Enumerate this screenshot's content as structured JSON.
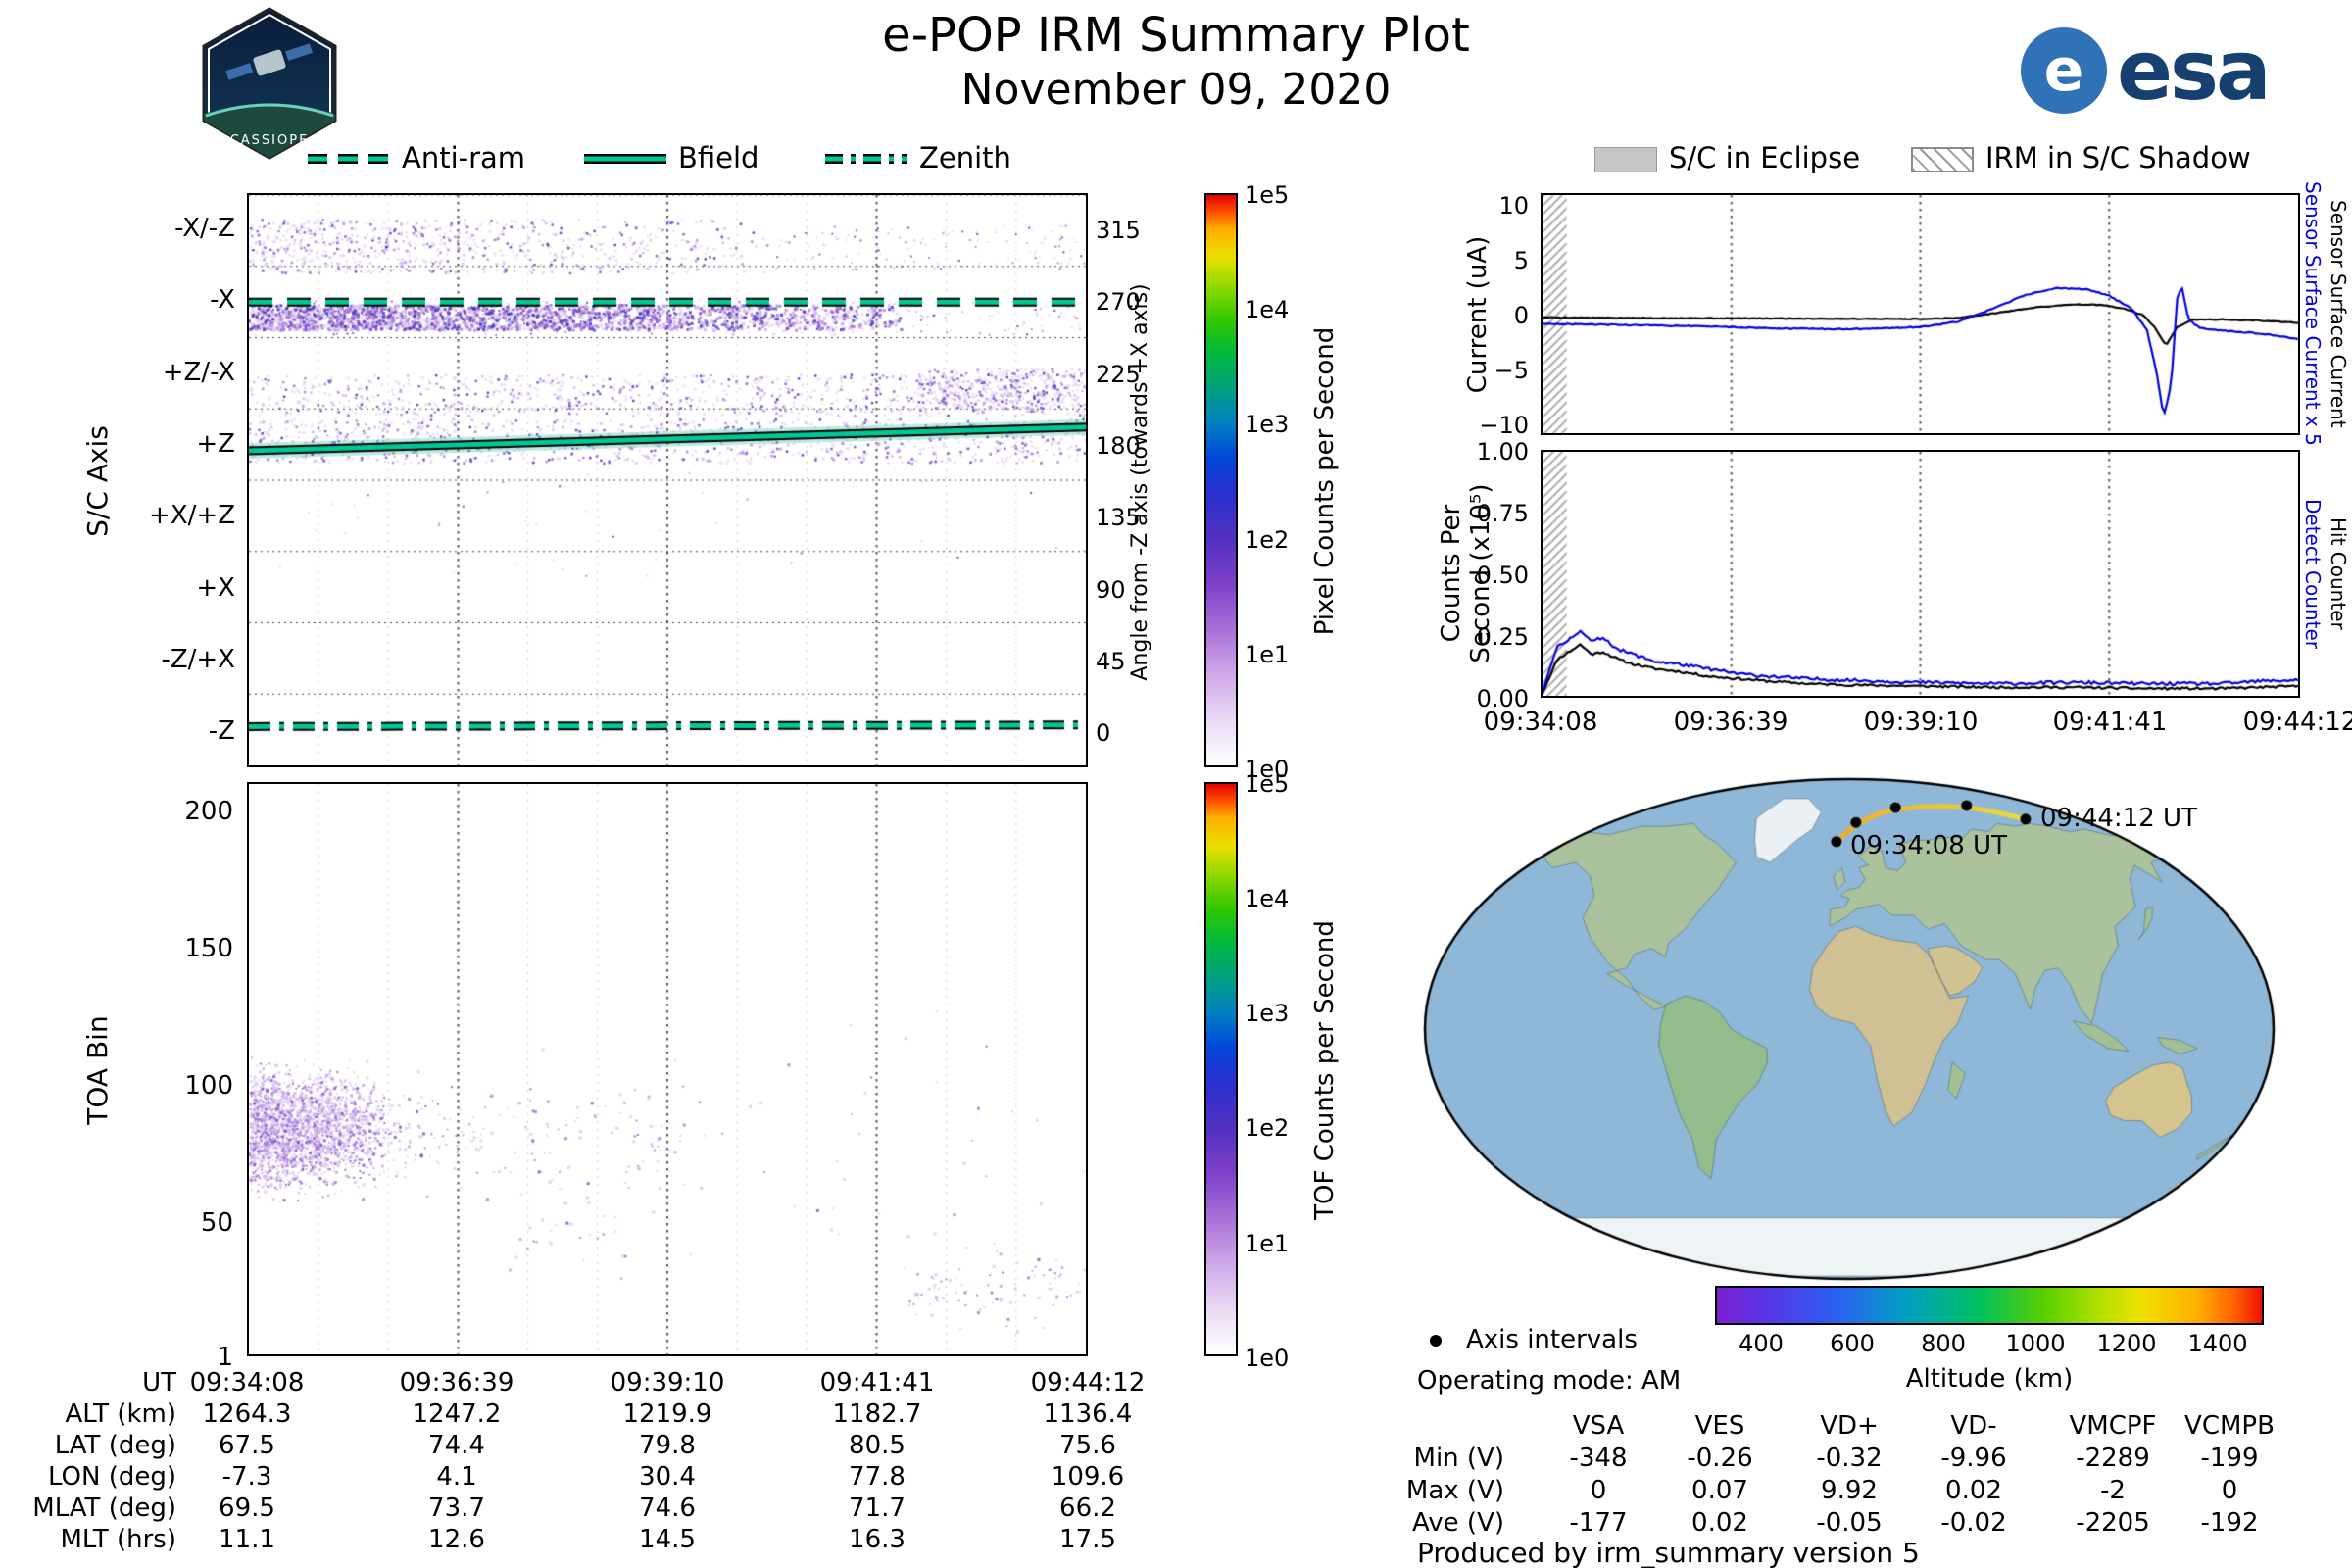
{
  "header": {
    "title": "e-POP IRM Summary Plot",
    "date": "November 09, 2020",
    "esa_logo_text": "esa",
    "esa_logo_e": "e",
    "mission_patch_text": "CASSIOPE"
  },
  "left_legend": {
    "items": [
      {
        "label": "Anti-ram"
      },
      {
        "label": "Bfield"
      },
      {
        "label": "Zenith"
      }
    ],
    "line_color": "#00c896"
  },
  "right_legend": {
    "eclipse": "S/C in Eclipse",
    "shadow": "IRM in S/C Shadow"
  },
  "spectrogram": {
    "ylabel": "S/C Axis",
    "band_labels": [
      "-X/-Z",
      "-X",
      "+Z/-X",
      "+Z",
      "+X/+Z",
      "+X",
      "-Z/+X",
      "-Z"
    ],
    "angle_label": "Angle from -Z axis (towards +X axis)",
    "angle_ticks": [
      "315",
      "270",
      "225",
      "180",
      "135",
      "90",
      "45",
      "0"
    ],
    "colorbar_label": "Pixel Counts per Second",
    "colorbar_ticks": [
      "1e5",
      "1e4",
      "1e3",
      "1e2",
      "1e1",
      "1e0"
    ]
  },
  "toa": {
    "ylabel": "TOA Bin",
    "y_ticks": [
      "200",
      "150",
      "100",
      "50",
      "1"
    ],
    "colorbar_label": "TOF Counts per Second",
    "colorbar_ticks": [
      "1e5",
      "1e4",
      "1e3",
      "1e2",
      "1e1",
      "1e0"
    ]
  },
  "ephemeris": {
    "rows": [
      {
        "label": "UT",
        "values": [
          "09:34:08",
          "09:36:39",
          "09:39:10",
          "09:41:41",
          "09:44:12"
        ]
      },
      {
        "label": "ALT (km)",
        "values": [
          "1264.3",
          "1247.2",
          "1219.9",
          "1182.7",
          "1136.4"
        ]
      },
      {
        "label": "LAT (deg)",
        "values": [
          "67.5",
          "74.4",
          "79.8",
          "80.5",
          "75.6"
        ]
      },
      {
        "label": "LON (deg)",
        "values": [
          "-7.3",
          "4.1",
          "30.4",
          "77.8",
          "109.6"
        ]
      },
      {
        "label": "MLAT (deg)",
        "values": [
          "69.5",
          "73.7",
          "74.6",
          "71.7",
          "66.2"
        ]
      },
      {
        "label": "MLT (hrs)",
        "values": [
          "11.1",
          "12.6",
          "14.5",
          "16.3",
          "17.5"
        ]
      }
    ]
  },
  "current_chart": {
    "ylabel": "Current (uA)",
    "y_ticks": [
      "10",
      "5",
      "0",
      "−5",
      "−10"
    ],
    "label_blue": "Sensor Surface Current x 5",
    "label_black": "Sensor Surface Current"
  },
  "counts_chart": {
    "ylabel_line1": "Counts Per",
    "ylabel_line2": "Second (x10⁵)",
    "y_ticks": [
      "1.00",
      "0.75",
      "0.50",
      "0.25",
      "0.00"
    ],
    "label_blue": "Detect Counter",
    "label_black": "Hit Counter",
    "x_ticks": [
      "09:34:08",
      "09:36:39",
      "09:39:10",
      "09:41:41",
      "09:44:12"
    ]
  },
  "map": {
    "start_label": "09:34:08 UT",
    "end_label": "09:44:12 UT",
    "axis_intervals": "Axis intervals",
    "operating_mode": "Operating mode: AM",
    "altitude_label": "Altitude (km)",
    "altitude_ticks": [
      "400",
      "600",
      "800",
      "1000",
      "1200",
      "1400"
    ]
  },
  "voltage_table": {
    "headers": [
      "VSA",
      "VES",
      "VD+",
      "VD-",
      "VMCPF",
      "VCMPB"
    ],
    "rows": [
      {
        "label": "Min (V)",
        "values": [
          "-348",
          "-0.26",
          "-0.32",
          "-9.96",
          "-2289",
          "-199"
        ]
      },
      {
        "label": "Max (V)",
        "values": [
          "0",
          "0.07",
          "9.92",
          "0.02",
          "-2",
          "0"
        ]
      },
      {
        "label": "Ave (V)",
        "values": [
          "-177",
          "0.02",
          "-0.05",
          "-0.02",
          "-2205",
          "-192"
        ]
      }
    ]
  },
  "footer": "Produced by irm_summary version 5",
  "chart_data": [
    {
      "id": "sc_axis",
      "type": "heatmap",
      "ylabel": "S/C Axis",
      "y2label": "Angle from -Z axis (towards +X axis)",
      "x_ticks": [
        "09:34:08",
        "09:36:39",
        "09:39:10",
        "09:41:41",
        "09:44:12"
      ],
      "band_labels": [
        "-X/-Z",
        "-X",
        "+Z/-X",
        "+Z",
        "+X/+Z",
        "+X",
        "-Z/+X",
        "-Z"
      ],
      "angle_ticks": [
        315,
        270,
        225,
        180,
        135,
        90,
        45,
        0
      ],
      "angle_range": [
        -22.5,
        337.5
      ],
      "colorbar": {
        "label": "Pixel Counts per Second",
        "scale": "log",
        "ticks": [
          "1e0",
          "1e1",
          "1e2",
          "1e3",
          "1e4",
          "1e5"
        ]
      },
      "line_color": "#00c896",
      "lines": {
        "anti_ram": {
          "style": "dashed",
          "angle": [
            270,
            270
          ]
        },
        "bfield": {
          "style": "solid",
          "angle_start": 176,
          "angle_end": 191
        },
        "zenith": {
          "style": "dashdot",
          "angle": [
            2,
            3
          ]
        }
      },
      "speckle_colors": [
        "#e6d6f4",
        "#cdb0ea",
        "#aa7fd9",
        "#7e4fc9",
        "#4a38be"
      ],
      "speckle_regions": [
        {
          "angle": [
            288,
            322
          ],
          "t": [
            0,
            0.62
          ],
          "count": 1200,
          "fade": true,
          "size": 2.5
        },
        {
          "angle": [
            290,
            318
          ],
          "t": [
            0.62,
            1
          ],
          "count": 140,
          "size": 2
        },
        {
          "angle": [
            252,
            268
          ],
          "t": [
            0,
            0.78
          ],
          "count": 3400,
          "fade": true,
          "dense": true,
          "size": 3
        },
        {
          "angle": [
            249,
            271
          ],
          "t": [
            0,
            1
          ],
          "count": 300,
          "size": 2
        },
        {
          "angle": [
            198,
            224
          ],
          "t": [
            0,
            1
          ],
          "count": 800,
          "size": 2.5
        },
        {
          "angle": [
            202,
            228
          ],
          "t": [
            0.8,
            1
          ],
          "count": 380,
          "size": 2.5
        },
        {
          "angle": [
            168,
            196
          ],
          "t": [
            0,
            1
          ],
          "count": 950,
          "size": 2.5
        },
        {
          "angle": [
            95,
            165
          ],
          "t": [
            0,
            1
          ],
          "count": 45,
          "size": 2
        }
      ]
    },
    {
      "id": "toa",
      "type": "scatter",
      "ylabel": "TOA Bin",
      "y_ticks": [
        1,
        50,
        100,
        150,
        200
      ],
      "y_range": [
        1,
        212
      ],
      "colorbar": {
        "label": "TOF Counts per Second",
        "scale": "log",
        "ticks": [
          "1e0",
          "1e1",
          "1e2",
          "1e3",
          "1e4",
          "1e5"
        ]
      },
      "colors": [
        "#dcc6f0",
        "#c19de4",
        "#a274d6",
        "#7e4cc4"
      ],
      "clusters": [
        {
          "t": [
            0,
            0.16
          ],
          "center": 85,
          "spread": 10,
          "count": 3200,
          "decay": true
        },
        {
          "t": [
            0.05,
            0.3
          ],
          "center": 82,
          "spread": 9,
          "count": 520,
          "decay": true
        },
        {
          "t": [
            0.3,
            0.52
          ],
          "center": 80,
          "spread": 12,
          "count": 90
        },
        {
          "t": [
            0.5,
            1
          ],
          "center": 85,
          "spread": 28,
          "count": 40
        },
        {
          "t": [
            0.78,
            1
          ],
          "center": 25,
          "spread": 7,
          "count": 90
        },
        {
          "t": [
            0.3,
            0.45
          ],
          "center": 45,
          "spread": 8,
          "count": 25
        }
      ]
    },
    {
      "id": "current",
      "type": "line",
      "ylabel": "Current (uA)",
      "y_range": [
        -11,
        11
      ],
      "y_ticks": [
        10,
        5,
        0,
        -5,
        -10
      ],
      "x_ticks": [
        "09:34:08",
        "09:36:39",
        "09:39:10",
        "09:41:41",
        "09:44:12"
      ],
      "shadow_frac": 0.032,
      "series": [
        {
          "name": "Sensor Surface Current",
          "color": "#000000",
          "noise": 0.07,
          "x": [
            0,
            0.1,
            0.3,
            0.5,
            0.55,
            0.6,
            0.65,
            0.7,
            0.74,
            0.77,
            0.795,
            0.81,
            0.825,
            0.84,
            0.86,
            0.9,
            0.95,
            1
          ],
          "y": [
            -0.3,
            -0.35,
            -0.4,
            -0.45,
            -0.35,
            0.1,
            0.6,
            0.9,
            0.85,
            0.5,
            -0.1,
            -1.2,
            -2.9,
            -1.2,
            -0.5,
            -0.5,
            -0.6,
            -0.8
          ]
        },
        {
          "name": "Sensor Surface Current x 5",
          "color": "#0000dd",
          "noise": 0.1,
          "x": [
            0,
            0.1,
            0.2,
            0.3,
            0.4,
            0.5,
            0.55,
            0.6,
            0.64,
            0.68,
            0.72,
            0.75,
            0.78,
            0.8,
            0.813,
            0.822,
            0.832,
            0.84,
            0.846,
            0.855,
            0.87,
            0.9,
            0.95,
            1
          ],
          "y": [
            -0.9,
            -1.0,
            -1.1,
            -1.3,
            -1.4,
            -1.2,
            -0.7,
            0.6,
            1.8,
            2.4,
            2.3,
            1.7,
            0.5,
            -1.5,
            -5.5,
            -9.5,
            -6.5,
            1.5,
            2.6,
            -0.5,
            -1.3,
            -1.5,
            -1.8,
            -2.3
          ]
        }
      ]
    },
    {
      "id": "counts",
      "type": "line",
      "ylabel": "Counts Per Second (x10^5)",
      "y_range": [
        0,
        1
      ],
      "y_ticks": [
        1.0,
        0.75,
        0.5,
        0.25,
        0.0
      ],
      "x_ticks": [
        "09:34:08",
        "09:36:39",
        "09:39:10",
        "09:41:41",
        "09:44:12"
      ],
      "shadow_frac": 0.032,
      "series": [
        {
          "name": "Hit Counter",
          "color": "#000000",
          "noise": 0.009,
          "x": [
            0,
            0.008,
            0.02,
            0.035,
            0.05,
            0.065,
            0.08,
            0.1,
            0.12,
            0.15,
            0.18,
            0.22,
            0.26,
            0.3,
            0.35,
            0.4,
            0.5,
            0.6,
            0.7,
            0.8,
            0.9,
            0.95,
            1
          ],
          "y": [
            0.01,
            0.07,
            0.15,
            0.18,
            0.21,
            0.17,
            0.18,
            0.15,
            0.13,
            0.11,
            0.1,
            0.08,
            0.07,
            0.06,
            0.05,
            0.045,
            0.04,
            0.035,
            0.035,
            0.03,
            0.03,
            0.035,
            0.04
          ]
        },
        {
          "name": "Detect Counter",
          "color": "#0000dd",
          "noise": 0.013,
          "x": [
            0,
            0.008,
            0.02,
            0.035,
            0.05,
            0.065,
            0.08,
            0.1,
            0.12,
            0.15,
            0.18,
            0.22,
            0.26,
            0.3,
            0.35,
            0.4,
            0.5,
            0.6,
            0.7,
            0.8,
            0.9,
            0.95,
            1
          ],
          "y": [
            0.02,
            0.1,
            0.2,
            0.23,
            0.27,
            0.22,
            0.24,
            0.19,
            0.17,
            0.14,
            0.13,
            0.11,
            0.09,
            0.08,
            0.07,
            0.065,
            0.055,
            0.05,
            0.055,
            0.05,
            0.05,
            0.06,
            0.065
          ]
        }
      ]
    },
    {
      "id": "track",
      "type": "map_track",
      "points": [
        {
          "lon": -7.3,
          "lat": 67.5,
          "ut": "09:34:08"
        },
        {
          "lon": 4.1,
          "lat": 74.4,
          "ut": "09:36:39"
        },
        {
          "lon": 30.4,
          "lat": 79.8,
          "ut": "09:39:10"
        },
        {
          "lon": 77.8,
          "lat": 80.5,
          "ut": "09:41:41"
        },
        {
          "lon": 109.6,
          "lat": 75.6,
          "ut": "09:44:12"
        }
      ],
      "start_label": "09:34:08 UT",
      "end_label": "09:44:12 UT",
      "track_colors": [
        "#f0ac2c",
        "#e8dc3c"
      ],
      "altitude_colorbar": {
        "label": "Altitude (km)",
        "ticks": [
          400,
          600,
          800,
          1000,
          1200,
          1400
        ],
        "range": [
          300,
          1500
        ]
      }
    }
  ]
}
